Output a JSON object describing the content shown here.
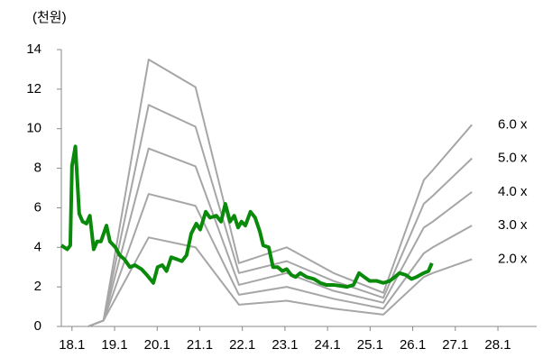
{
  "chart_data": {
    "type": "line",
    "y_unit": "(천원)",
    "xlim": [
      17.75,
      28.91
    ],
    "xticks": [
      {
        "value": 18,
        "label": "18.1"
      },
      {
        "value": 19,
        "label": "19.1"
      },
      {
        "value": 20,
        "label": "20.1"
      },
      {
        "value": 21,
        "label": "21.1"
      },
      {
        "value": 22,
        "label": "22.1"
      },
      {
        "value": 23,
        "label": "23.1"
      },
      {
        "value": 24,
        "label": "24.1"
      },
      {
        "value": 25,
        "label": "25.1"
      },
      {
        "value": 26,
        "label": "26.1"
      },
      {
        "value": 27,
        "label": "27.1"
      },
      {
        "value": 28,
        "label": "28.1"
      }
    ],
    "ylim": [
      0,
      14
    ],
    "yticks": [
      0,
      2,
      4,
      6,
      8,
      10,
      12,
      14
    ],
    "grid": false,
    "series": [
      {
        "name": "6.0 x",
        "color": "#a6a6a6",
        "x": [
          18.38,
          18.74,
          19.8,
          20.9,
          21.92,
          23.04,
          24.14,
          25.31,
          26.26,
          26.47,
          27.39
        ],
        "values": [
          0,
          0.3,
          13.5,
          12.1,
          3.2,
          4.0,
          2.7,
          1.7,
          7.4,
          7.9,
          10.2
        ]
      },
      {
        "name": "5.0 x",
        "color": "#a6a6a6",
        "x": [
          18.38,
          18.74,
          19.8,
          20.9,
          21.92,
          23.04,
          24.14,
          25.31,
          26.26,
          26.47,
          27.39
        ],
        "values": [
          0,
          0.3,
          11.2,
          10.1,
          2.7,
          3.3,
          2.3,
          1.45,
          6.2,
          6.6,
          8.5
        ]
      },
      {
        "name": "4.0 x",
        "color": "#a6a6a6",
        "x": [
          18.38,
          18.74,
          19.8,
          20.9,
          21.92,
          23.04,
          24.14,
          25.31,
          26.26,
          26.47,
          27.39
        ],
        "values": [
          0,
          0.3,
          9.0,
          8.1,
          2.1,
          2.7,
          1.8,
          1.2,
          5.0,
          5.3,
          6.8
        ]
      },
      {
        "name": "3.0 x",
        "color": "#a6a6a6",
        "x": [
          18.38,
          18.74,
          19.8,
          20.9,
          21.92,
          23.04,
          24.14,
          25.31,
          26.26,
          26.47,
          27.39
        ],
        "values": [
          0,
          0.3,
          6.7,
          6.1,
          1.6,
          2.0,
          1.4,
          0.9,
          3.7,
          4.0,
          5.1
        ]
      },
      {
        "name": "2.0 x",
        "color": "#a6a6a6",
        "x": [
          18.38,
          18.74,
          19.8,
          20.9,
          21.92,
          23.04,
          24.14,
          25.31,
          26.26,
          26.47,
          27.39
        ],
        "values": [
          0,
          0.3,
          4.5,
          4.0,
          1.1,
          1.3,
          0.9,
          0.6,
          2.5,
          2.7,
          3.4
        ]
      },
      {
        "color": "#0a8a0a",
        "x": [
          17.75,
          17.89,
          17.96,
          18.0,
          18.08,
          18.17,
          18.25,
          18.34,
          18.42,
          18.51,
          18.59,
          18.68,
          18.81,
          18.89,
          19.02,
          19.12,
          19.23,
          19.36,
          19.48,
          19.63,
          19.76,
          19.91,
          20.01,
          20.12,
          20.22,
          20.33,
          20.46,
          20.58,
          20.69,
          20.8,
          20.92,
          21.01,
          21.14,
          21.24,
          21.39,
          21.5,
          21.6,
          21.71,
          21.81,
          21.9,
          21.98,
          22.07,
          22.19,
          22.3,
          22.41,
          22.49,
          22.62,
          22.72,
          22.83,
          22.94,
          23.04,
          23.15,
          23.25,
          23.36,
          23.51,
          23.68,
          23.83,
          23.97,
          24.14,
          24.31,
          24.46,
          24.61,
          24.74,
          24.86,
          24.99,
          25.16,
          25.31,
          25.46,
          25.58,
          25.69,
          25.84,
          25.97,
          26.09,
          26.26,
          26.37,
          26.45
        ],
        "values": [
          4.1,
          3.9,
          4.1,
          8.1,
          9.1,
          5.7,
          5.3,
          5.2,
          5.6,
          3.9,
          4.3,
          4.3,
          5.1,
          4.3,
          4.0,
          3.6,
          3.4,
          3.0,
          3.1,
          2.9,
          2.6,
          2.2,
          3.0,
          3.1,
          2.8,
          3.5,
          3.4,
          3.3,
          3.6,
          4.7,
          5.2,
          4.9,
          5.8,
          5.5,
          5.6,
          5.3,
          6.2,
          5.3,
          5.6,
          5.0,
          5.3,
          5.1,
          5.8,
          5.5,
          4.8,
          4.1,
          4.0,
          3.0,
          3.0,
          2.8,
          2.9,
          2.6,
          2.5,
          2.7,
          2.5,
          2.4,
          2.2,
          2.1,
          2.1,
          2.05,
          2.0,
          2.1,
          2.7,
          2.5,
          2.3,
          2.3,
          2.2,
          2.3,
          2.5,
          2.7,
          2.6,
          2.4,
          2.5,
          2.7,
          2.8,
          3.2
        ]
      }
    ]
  }
}
